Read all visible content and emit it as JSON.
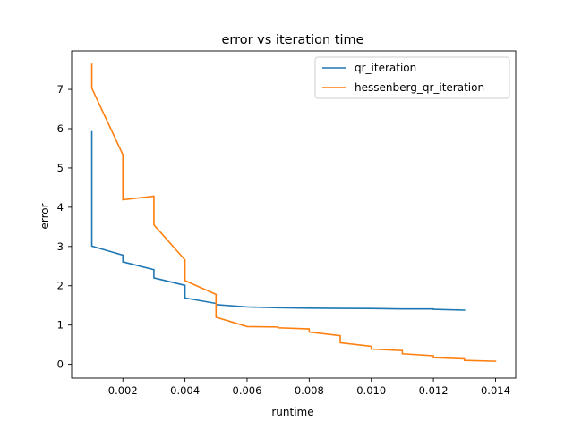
{
  "chart_data": {
    "type": "line",
    "title": "error vs iteration time",
    "xlabel": "runtime",
    "ylabel": "error",
    "xlim": [
      0.00035,
      0.01465
    ],
    "ylim": [
      -0.35,
      7.98
    ],
    "x_ticks": [
      0.002,
      0.004,
      0.006,
      0.008,
      0.01,
      0.012,
      0.014
    ],
    "x_tick_labels": [
      "0.002",
      "0.004",
      "0.006",
      "0.008",
      "0.010",
      "0.012",
      "0.014"
    ],
    "y_ticks": [
      0,
      1,
      2,
      3,
      4,
      5,
      6,
      7
    ],
    "y_tick_labels": [
      "0",
      "1",
      "2",
      "3",
      "4",
      "5",
      "6",
      "7"
    ],
    "grid": false,
    "legend_position": "top-right",
    "series": [
      {
        "name": "qr_iteration",
        "color": "#1f77b4",
        "points": [
          [
            0.001,
            5.92
          ],
          [
            0.001,
            3.01
          ],
          [
            0.002,
            2.78
          ],
          [
            0.002,
            2.61
          ],
          [
            0.003,
            2.41
          ],
          [
            0.003,
            2.2
          ],
          [
            0.004,
            2.01
          ],
          [
            0.004,
            1.69
          ],
          [
            0.005,
            1.55
          ],
          [
            0.005,
            1.52
          ],
          [
            0.006,
            1.46
          ],
          [
            0.007,
            1.44
          ],
          [
            0.008,
            1.43
          ],
          [
            0.01,
            1.42
          ],
          [
            0.011,
            1.41
          ],
          [
            0.012,
            1.41
          ],
          [
            0.012,
            1.4
          ],
          [
            0.013,
            1.38
          ]
        ]
      },
      {
        "name": "hessenberg_qr_iteration",
        "color": "#ff7f0e",
        "points": [
          [
            0.001,
            7.64
          ],
          [
            0.001,
            7.03
          ],
          [
            0.002,
            5.34
          ],
          [
            0.002,
            4.19
          ],
          [
            0.003,
            4.28
          ],
          [
            0.003,
            3.55
          ],
          [
            0.004,
            2.66
          ],
          [
            0.004,
            2.13
          ],
          [
            0.005,
            1.78
          ],
          [
            0.005,
            1.2
          ],
          [
            0.006,
            0.96
          ],
          [
            0.007,
            0.95
          ],
          [
            0.007,
            0.93
          ],
          [
            0.008,
            0.9
          ],
          [
            0.008,
            0.82
          ],
          [
            0.009,
            0.73
          ],
          [
            0.009,
            0.55
          ],
          [
            0.01,
            0.46
          ],
          [
            0.01,
            0.39
          ],
          [
            0.011,
            0.35
          ],
          [
            0.011,
            0.27
          ],
          [
            0.012,
            0.22
          ],
          [
            0.012,
            0.17
          ],
          [
            0.013,
            0.14
          ],
          [
            0.013,
            0.1
          ],
          [
            0.014,
            0.08
          ]
        ]
      }
    ]
  }
}
